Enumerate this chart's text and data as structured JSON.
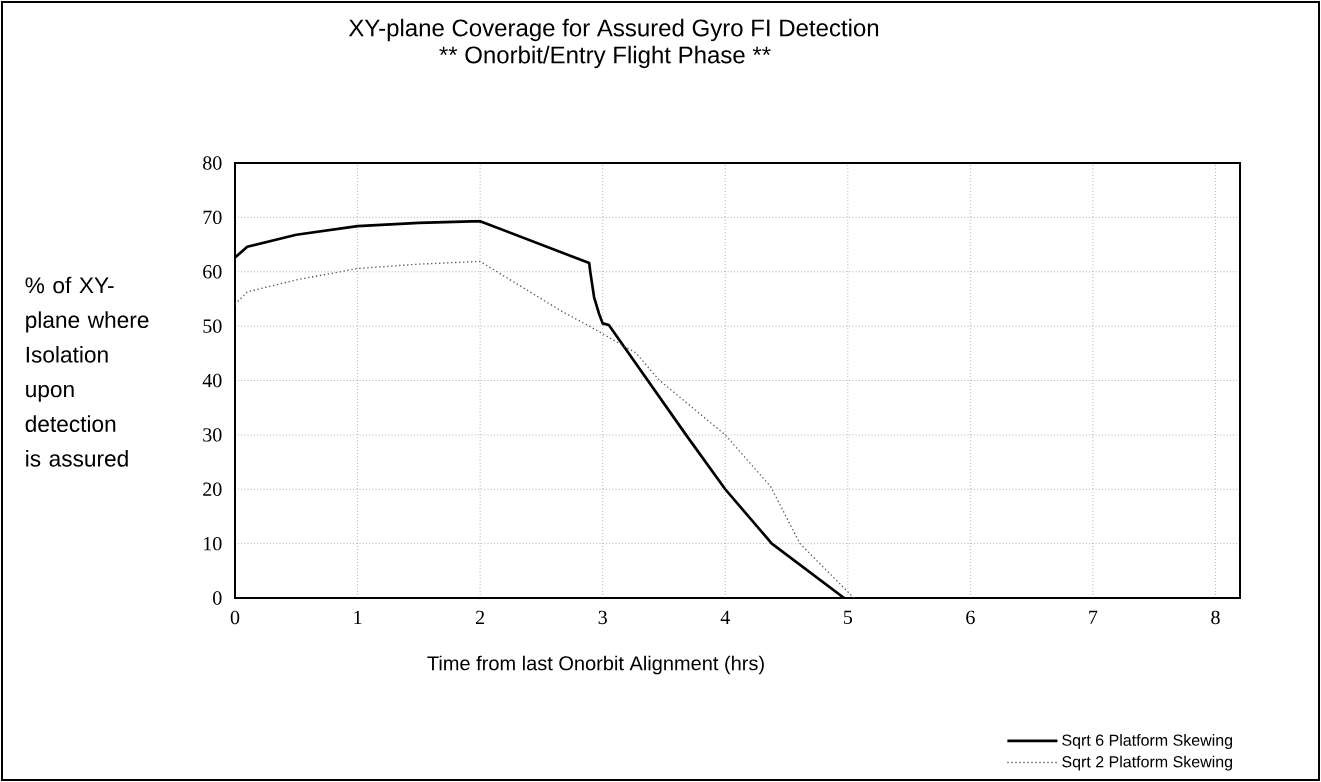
{
  "chart_data": {
    "type": "line",
    "title": "XY-plane Coverage for Assured Gyro FI Detection",
    "subtitle": "** Onorbit/Entry Flight Phase **",
    "xlabel": "Time from last Onorbit Alignment (hrs)",
    "ylabel": "% of XY-plane where Isolation upon detection is assured",
    "xlim": [
      0,
      8.2
    ],
    "ylim": [
      0,
      80
    ],
    "xticks": [
      0,
      1,
      2,
      3,
      4,
      5,
      6,
      7,
      8
    ],
    "yticks": [
      0,
      10,
      20,
      30,
      40,
      50,
      60,
      70,
      80
    ],
    "grid": true,
    "legend": "bottom right",
    "marker": "none",
    "series": [
      {
        "name": "Sqrt 6 Platform Skewing",
        "color": "#000000",
        "line_style": "solid",
        "x": [
          0,
          0.1,
          0.5,
          1,
          1.5,
          2,
          2.89,
          2.9,
          2.93,
          2.97,
          3.0,
          3.05,
          3.68,
          4.0,
          4.38,
          4.97
        ],
        "values": [
          62.6,
          64.6,
          66.8,
          68.4,
          69.0,
          69.3,
          61.6,
          59.8,
          55.3,
          52.3,
          50.5,
          50.2,
          30,
          20,
          10,
          0
        ]
      },
      {
        "name": "Sqrt 2 Platform Skewing",
        "color": "#555555",
        "line_style": "dotted",
        "x": [
          0,
          0.1,
          0.5,
          1,
          1.5,
          2,
          2.66,
          2.89,
          3.27,
          3.46,
          4.0,
          4.37,
          4.61,
          5.05
        ],
        "values": [
          54.0,
          56.3,
          58.5,
          60.6,
          61.4,
          61.9,
          52.8,
          50,
          45.1,
          40.1,
          30,
          20.5,
          10,
          0
        ]
      }
    ]
  }
}
